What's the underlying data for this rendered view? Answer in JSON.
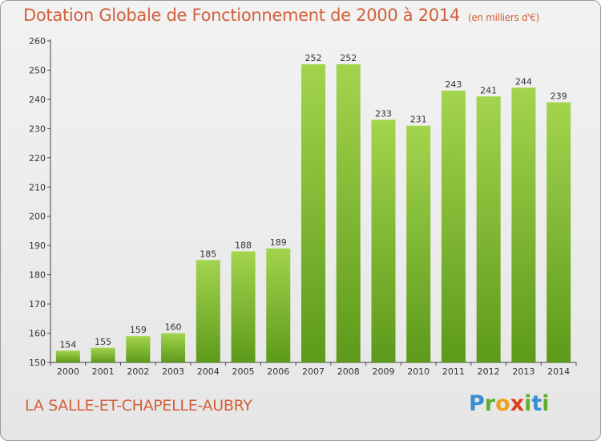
{
  "chart_data": {
    "type": "bar",
    "title": "Dotation Globale de Fonctionnement de 2000 à 2014",
    "subtitle": "(en milliers d'€)",
    "categories": [
      "2000",
      "2001",
      "2002",
      "2003",
      "2004",
      "2005",
      "2006",
      "2007",
      "2008",
      "2009",
      "2010",
      "2011",
      "2012",
      "2013",
      "2014"
    ],
    "values": [
      154,
      155,
      159,
      160,
      185,
      188,
      189,
      252,
      252,
      233,
      231,
      243,
      241,
      244,
      239
    ],
    "ylim": [
      150,
      260
    ],
    "yticks": [
      150,
      160,
      170,
      180,
      190,
      200,
      210,
      220,
      230,
      240,
      250,
      260
    ],
    "grid": false,
    "bar_color_top": "#a3d44e",
    "bar_color_bottom": "#5d9a1a"
  },
  "footer": {
    "commune": "LA SALLE-ET-CHAPELLE-AUBRY",
    "logo": "Proxiti"
  }
}
